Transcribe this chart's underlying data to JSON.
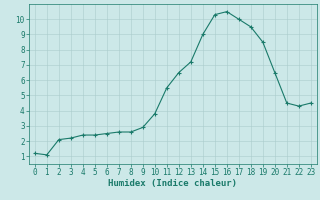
{
  "x": [
    0,
    1,
    2,
    3,
    4,
    5,
    6,
    7,
    8,
    9,
    10,
    11,
    12,
    13,
    14,
    15,
    16,
    17,
    18,
    19,
    20,
    21,
    22,
    23
  ],
  "y": [
    1.2,
    1.1,
    2.1,
    2.2,
    2.4,
    2.4,
    2.5,
    2.6,
    2.6,
    2.9,
    3.8,
    5.5,
    6.5,
    7.2,
    9.0,
    10.3,
    10.5,
    10.0,
    9.5,
    8.5,
    6.5,
    4.5,
    4.3,
    4.5
  ],
  "xlim": [
    -0.5,
    23.5
  ],
  "ylim": [
    0.5,
    11
  ],
  "yticks": [
    1,
    2,
    3,
    4,
    5,
    6,
    7,
    8,
    9,
    10
  ],
  "xticks": [
    0,
    1,
    2,
    3,
    4,
    5,
    6,
    7,
    8,
    9,
    10,
    11,
    12,
    13,
    14,
    15,
    16,
    17,
    18,
    19,
    20,
    21,
    22,
    23
  ],
  "xlabel": "Humidex (Indice chaleur)",
  "line_color": "#1a7a6a",
  "marker": "+",
  "marker_size": 3,
  "bg_color": "#cce8e8",
  "grid_color": "#aacccc",
  "axis_color": "#1a7a6a",
  "tick_fontsize": 5.5,
  "xlabel_fontsize": 6.5
}
